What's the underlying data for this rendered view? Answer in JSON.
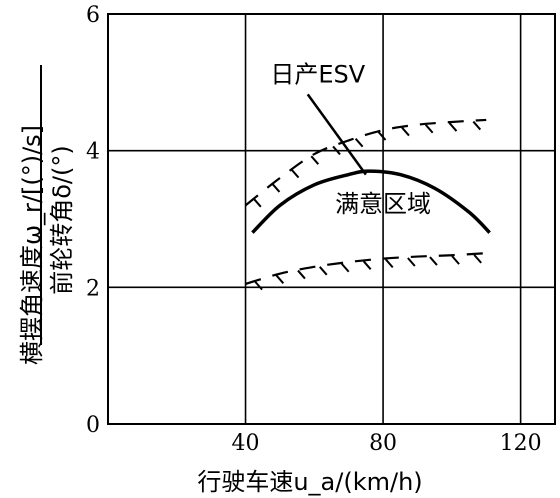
{
  "chart_data": {
    "type": "line",
    "xlabel": "行驶车速u_a/(km/h)",
    "ylabel_top": "横摆角速度ω_r/[(°)/s]",
    "ylabel_bottom": "前轮转角δ/(°)",
    "xlim": [
      0,
      130
    ],
    "ylim": [
      0,
      6
    ],
    "x_ticks": [
      40,
      80,
      120
    ],
    "y_ticks": [
      0,
      2,
      4,
      6
    ],
    "grid": true,
    "series": [
      {
        "role": "upper-boundary",
        "style": "dashed-hatched",
        "x": [
          40,
          50,
          60,
          70,
          80,
          90,
          100,
          110
        ],
        "y": [
          3.2,
          3.6,
          3.95,
          4.15,
          4.3,
          4.38,
          4.42,
          4.45
        ]
      },
      {
        "role": "lower-boundary",
        "style": "dashed-hatched",
        "x": [
          40,
          50,
          60,
          70,
          80,
          90,
          100,
          110
        ],
        "y": [
          2.05,
          2.2,
          2.3,
          2.37,
          2.42,
          2.45,
          2.47,
          2.5
        ]
      },
      {
        "name": "日产ESV",
        "style": "solid",
        "x": [
          42,
          50,
          60,
          70,
          76,
          85,
          95,
          105,
          111
        ],
        "y": [
          2.8,
          3.2,
          3.5,
          3.65,
          3.7,
          3.65,
          3.45,
          3.1,
          2.8
        ]
      }
    ],
    "annotations": [
      {
        "text": "日产ESV",
        "x": 61,
        "y": 5.0,
        "arrow_to": [
          75,
          3.65
        ]
      },
      {
        "text": "满意区域",
        "x": 80,
        "y": 3.1
      }
    ]
  }
}
